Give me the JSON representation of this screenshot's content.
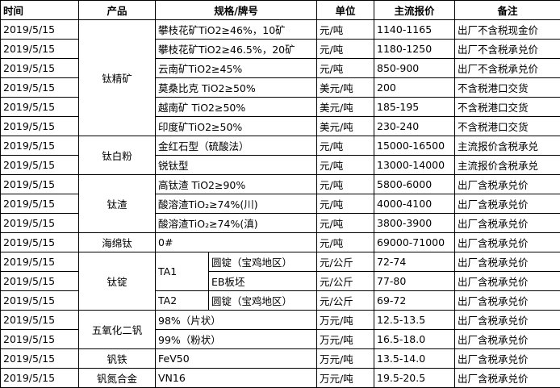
{
  "table": {
    "header": [
      "时间",
      "产品",
      "规格/牌号",
      "单位",
      "主流报价",
      "备注"
    ],
    "groups": [
      {
        "product": "钛精矿",
        "rows": [
          {
            "date": "2019/5/15",
            "spec": "攀枝花矿TiO2≥46%，10矿",
            "unit": "元/吨",
            "price": "1140-1165",
            "note": "出厂不含税现金价"
          },
          {
            "date": "2019/5/15",
            "spec": "攀枝花矿TiO2≥46.5%，20矿",
            "unit": "元/吨",
            "price": "1180-1250",
            "note": "出厂不含税承兑价"
          },
          {
            "date": "2019/5/15",
            "spec": "云南矿TiO2≥45%",
            "unit": "元/吨",
            "price": "850-900",
            "note": "出厂不含税承兑价"
          },
          {
            "date": "2019/5/15",
            "spec": "莫桑比克 TiO2≥50%",
            "unit": "美元/吨",
            "price": "200",
            "note": "不含税港口交货"
          },
          {
            "date": "2019/5/15",
            "spec": "越南矿 TiO2≥50%",
            "unit": "美元/吨",
            "price": "185-195",
            "note": "不含税港口交货"
          },
          {
            "date": "2019/5/15",
            "spec": "印度矿TiO2≥50%",
            "unit": "美元/吨",
            "price": "230-240",
            "note": "不含税港口交货"
          }
        ]
      },
      {
        "product": "钛白粉",
        "rows": [
          {
            "date": "2019/5/15",
            "spec": "金红石型（硫酸法）",
            "unit": "元/吨",
            "price": "15000-16500",
            "note": "主流报价含税承兑"
          },
          {
            "date": "2019/5/15",
            "spec": "锐钛型",
            "unit": "元/吨",
            "price": "13000-14000",
            "note": "主流报价含税承兑"
          }
        ]
      },
      {
        "product": "钛渣",
        "rows": [
          {
            "date": "2019/5/15",
            "spec": "高钛渣 TiO2≥90%",
            "unit": "元/吨",
            "price": "5800-6000",
            "note": "出厂含税承兑价"
          },
          {
            "date": "2019/5/15",
            "spec": "酸溶渣TiO₂≥74%(川)",
            "unit": "元/吨",
            "price": "4000-4100",
            "note": "出厂含税承兑价"
          },
          {
            "date": "2019/5/15",
            "spec": "酸溶渣TiO₂≥74%(滇)",
            "unit": "元/吨",
            "price": "3800-3900",
            "note": "出厂含税承兑价"
          }
        ]
      },
      {
        "product": "海绵钛",
        "rows": [
          {
            "date": "2019/5/15",
            "spec": "0#",
            "unit": "元/吨",
            "price": "69000-71000",
            "note": "出厂含税承兑价"
          }
        ]
      },
      {
        "product": "钛锭",
        "subgroups": [
          {
            "grade": "TA1",
            "rows": [
              {
                "date": "2019/5/15",
                "spec": "圆锭（宝鸡地区）",
                "unit": "元/公斤",
                "price": "72-74",
                "note": "出厂含税承兑价"
              },
              {
                "date": "2019/5/15",
                "spec": "EB板坯",
                "unit": "元/公斤",
                "price": "77-80",
                "note": "出厂含税承兑价"
              }
            ]
          },
          {
            "grade": "TA2",
            "rows": [
              {
                "date": "2019/5/15",
                "spec": "圆锭（宝鸡地区）",
                "unit": "元/公斤",
                "price": "69-72",
                "note": "出厂含税承兑价"
              }
            ]
          }
        ]
      },
      {
        "product": "五氧化二钒",
        "rows": [
          {
            "date": "2019/5/15",
            "spec": "98%（片状）",
            "unit": "万元/吨",
            "price": "12.5-13.5",
            "note": "出厂含税承兑价"
          },
          {
            "date": "2019/5/15",
            "spec": "99%（粉状）",
            "unit": "万元/吨",
            "price": "16.5-18.0",
            "note": "出厂含税承兑价"
          }
        ]
      },
      {
        "product": "钒铁",
        "rows": [
          {
            "date": "2019/5/15",
            "spec": "FeV50",
            "unit": "万元/吨",
            "price": "13.5-14.0",
            "note": "出厂含税承兑价"
          }
        ]
      },
      {
        "product": "钒氮合金",
        "rows": [
          {
            "date": "2019/5/15",
            "spec": "VN16",
            "unit": "万元/吨",
            "price": "19.5-20.5",
            "note": "出厂含税承兑价"
          }
        ]
      }
    ]
  }
}
